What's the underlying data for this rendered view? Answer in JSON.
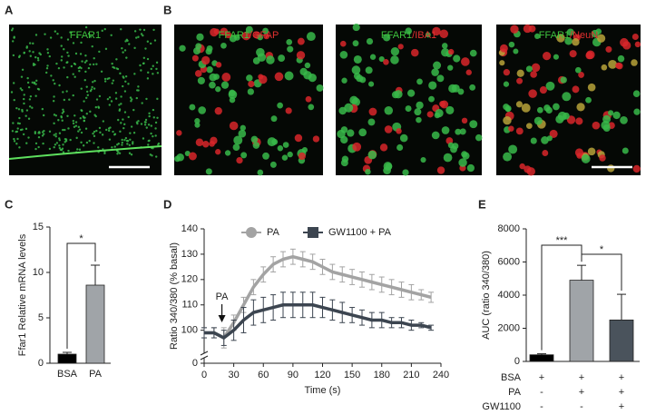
{
  "figure": {
    "panel_letters": [
      "A",
      "B",
      "C",
      "D",
      "E"
    ],
    "images": [
      {
        "label_parts": [
          "FFAR1"
        ]
      },
      {
        "label_parts": [
          "FFAR1",
          "/GFAP"
        ]
      },
      {
        "label_parts": [
          "FFAR1",
          "/IBA1"
        ]
      },
      {
        "label_parts": [
          "FFAR1",
          "/NeuN"
        ]
      }
    ]
  },
  "chart_data": [
    {
      "type": "bar",
      "ylabel": "Ffar1 Relative mRNA levels",
      "categories": [
        "BSA",
        "PA"
      ],
      "values": [
        1.0,
        8.6
      ],
      "errors": [
        0.2,
        2.2
      ],
      "colors": [
        "#000000",
        "#a0a4a8"
      ],
      "ylim": [
        0,
        15
      ],
      "yticks": [
        0,
        5,
        10,
        15
      ],
      "significance_labels": [
        "*"
      ]
    },
    {
      "type": "line",
      "xlabel": "Time (s)",
      "ylabel": "Ratio 340/380 (% basal)",
      "x": [
        0,
        10,
        20,
        30,
        40,
        50,
        60,
        70,
        80,
        90,
        100,
        110,
        120,
        130,
        140,
        150,
        160,
        170,
        180,
        190,
        200,
        210,
        220,
        230
      ],
      "series": [
        {
          "name": "PA",
          "color": "#a3a3a3",
          "values": [
            99,
            99,
            97,
            103,
            110,
            117,
            122,
            126,
            128,
            129,
            128,
            127,
            125,
            123,
            122,
            121,
            120,
            119,
            118,
            117,
            116,
            115,
            114,
            113
          ],
          "errors": [
            2,
            2,
            4,
            3,
            3,
            3,
            3,
            3,
            3,
            3,
            3,
            3,
            3,
            3,
            3,
            3,
            3,
            3,
            3,
            3,
            3,
            3,
            2,
            2
          ]
        },
        {
          "name": "GW1100 + PA",
          "color": "#3c4550",
          "values": [
            99,
            99,
            97,
            100,
            104,
            107,
            108,
            109,
            110,
            110,
            110,
            110,
            109,
            108,
            107,
            106,
            105,
            104,
            104,
            103,
            103,
            102,
            102,
            101
          ],
          "errors": [
            2,
            2,
            3,
            4,
            5,
            5,
            5,
            5,
            5,
            5,
            5,
            5,
            4,
            4,
            4,
            3,
            3,
            3,
            3,
            2,
            2,
            2,
            1,
            1
          ]
        }
      ],
      "xlim": [
        0,
        240
      ],
      "xticks": [
        0,
        30,
        60,
        90,
        120,
        150,
        180,
        210,
        240
      ],
      "ylim": [
        0,
        140
      ],
      "yticks": [
        0,
        100,
        110,
        120,
        130,
        140
      ],
      "axis_break": [
        0,
        92
      ],
      "annotation": {
        "text": "PA",
        "x": 18
      }
    },
    {
      "type": "bar",
      "ylabel": "AUC (ratio 340/380)",
      "categories": [
        null,
        null,
        null
      ],
      "values": [
        400,
        4900,
        2500
      ],
      "errors": [
        60,
        900,
        1550
      ],
      "colors": [
        "#000000",
        "#a0a4a8",
        "#4a535c"
      ],
      "ylim": [
        0,
        8000
      ],
      "yticks": [
        0,
        2000,
        4000,
        6000,
        8000
      ],
      "significance_labels": [
        "***",
        "*"
      ],
      "treatment_table": [
        {
          "label": "BSA",
          "cells": [
            "+",
            "+",
            "+"
          ]
        },
        {
          "label": "PA",
          "cells": [
            "-",
            "+",
            "+"
          ]
        },
        {
          "label": "GW1100",
          "cells": [
            "-",
            "-",
            "+"
          ]
        }
      ]
    }
  ]
}
